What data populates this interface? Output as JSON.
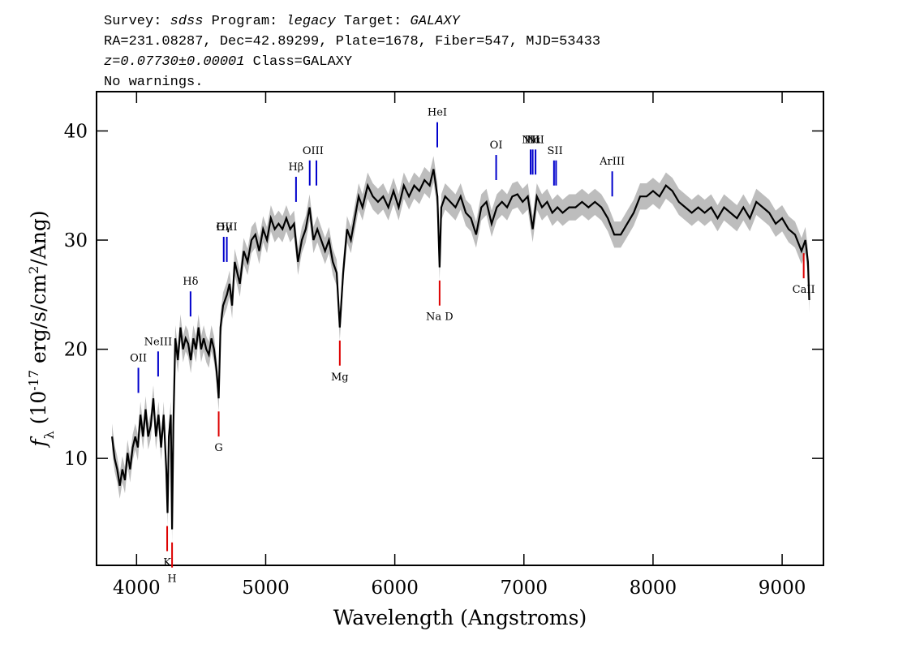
{
  "header": {
    "lines": [
      [
        {
          "text": "Survey: "
        },
        {
          "text": "sdss",
          "italic": true
        },
        {
          "text": " Program: "
        },
        {
          "text": "legacy",
          "italic": true
        },
        {
          "text": " Target: "
        },
        {
          "text": "GALAXY",
          "italic": true
        }
      ],
      [
        {
          "text": "RA=231.08287, Dec=42.89299, Plate=1678, Fiber=547, MJD=53433"
        }
      ],
      [
        {
          "text": "z=0.07730±0.00001",
          "italic": true
        },
        {
          "text": " Class=GALAXY"
        }
      ],
      [
        {
          "text": "No warnings."
        }
      ]
    ]
  },
  "chart_data": {
    "type": "line",
    "x_label": "Wavelength (Angstroms)",
    "y_label": [
      {
        "text": "f",
        "italic": true
      },
      {
        "text": "λ",
        "shift": "sub"
      },
      {
        "text": " (10"
      },
      {
        "text": "-17",
        "shift": "sup"
      },
      {
        "text": " erg/s/cm"
      },
      {
        "text": "2",
        "shift": "sup"
      },
      {
        "text": "/Ang)"
      }
    ],
    "xlim": [
      3690,
      9320
    ],
    "ylim": [
      0.2,
      43.6
    ],
    "xticks": [
      4000,
      5000,
      6000,
      7000,
      8000,
      9000
    ],
    "yticks": [
      10,
      20,
      30,
      40
    ],
    "series": [
      {
        "color": "#000000",
        "band_color": "#bdbdbd",
        "error": 1.2,
        "x": [
          3810,
          3830,
          3850,
          3870,
          3890,
          3910,
          3930,
          3950,
          3970,
          3990,
          4010,
          4030,
          4050,
          4070,
          4090,
          4110,
          4130,
          4150,
          4170,
          4190,
          4210,
          4230,
          4240,
          4250,
          4265,
          4275,
          4285,
          4300,
          4320,
          4340,
          4360,
          4380,
          4400,
          4420,
          4440,
          4460,
          4480,
          4500,
          4520,
          4540,
          4560,
          4580,
          4600,
          4620,
          4636,
          4650,
          4670,
          4700,
          4720,
          4740,
          4760,
          4780,
          4800,
          4830,
          4860,
          4890,
          4920,
          4950,
          4980,
          5010,
          5040,
          5070,
          5100,
          5130,
          5160,
          5190,
          5220,
          5250,
          5280,
          5310,
          5340,
          5370,
          5400,
          5430,
          5460,
          5490,
          5520,
          5550,
          5574,
          5600,
          5630,
          5660,
          5690,
          5720,
          5750,
          5790,
          5830,
          5870,
          5910,
          5950,
          5990,
          6030,
          6070,
          6110,
          6150,
          6190,
          6230,
          6270,
          6300,
          6330,
          6347,
          6360,
          6390,
          6430,
          6470,
          6510,
          6550,
          6590,
          6630,
          6670,
          6710,
          6750,
          6790,
          6830,
          6870,
          6910,
          6950,
          6990,
          7030,
          7068,
          7100,
          7140,
          7180,
          7220,
          7260,
          7300,
          7350,
          7400,
          7450,
          7500,
          7550,
          7600,
          7650,
          7700,
          7750,
          7800,
          7850,
          7900,
          7950,
          8000,
          8050,
          8100,
          8150,
          8200,
          8250,
          8300,
          8350,
          8400,
          8450,
          8500,
          8550,
          8600,
          8650,
          8700,
          8750,
          8800,
          8850,
          8900,
          8950,
          9000,
          9050,
          9100,
          9150,
          9180,
          9200,
          9210
        ],
        "values": [
          12,
          10,
          9,
          7.5,
          9,
          8,
          10.5,
          9,
          11,
          12,
          11,
          14,
          12,
          14.5,
          12,
          13,
          15.5,
          12,
          14,
          11,
          14,
          9,
          5,
          12,
          14,
          3.5,
          13,
          21,
          19,
          22,
          20,
          21,
          20.5,
          19,
          21,
          20,
          22,
          20,
          21,
          20,
          19.5,
          21,
          20,
          18,
          15.5,
          22,
          24,
          25,
          26,
          24,
          28,
          27,
          26,
          29,
          28,
          30,
          30.5,
          29,
          31,
          30,
          32,
          31,
          31.5,
          31,
          32,
          31,
          31.5,
          28,
          30,
          31,
          33,
          30,
          31,
          30,
          29,
          30,
          28,
          27,
          22,
          27,
          31,
          30,
          32,
          34,
          33,
          35,
          34,
          33.5,
          34,
          33,
          34.5,
          33,
          35,
          34,
          35,
          34.5,
          35.5,
          35,
          36.5,
          34,
          27.5,
          33,
          34,
          33.5,
          33,
          34,
          32.5,
          32,
          30.5,
          33,
          33.5,
          31.5,
          33,
          33.5,
          33,
          34,
          34.2,
          33.5,
          34,
          31,
          34,
          33,
          33.5,
          32.5,
          33,
          32.5,
          33,
          33,
          33.5,
          33,
          33.5,
          33,
          32,
          30.5,
          30.5,
          31.5,
          32.5,
          34,
          34,
          34.5,
          34,
          35,
          34.5,
          33.5,
          33,
          32.5,
          33,
          32.5,
          33,
          32,
          33,
          32.5,
          32,
          33,
          32,
          33.5,
          33,
          32.5,
          31.5,
          32,
          31,
          30.5,
          29,
          30,
          28,
          24.5
        ]
      }
    ],
    "emission_lines": [
      {
        "label": "OII",
        "x": [
          4014
        ]
      },
      {
        "label": "NeIII",
        "x": [
          4167
        ]
      },
      {
        "label": "Hδ",
        "x": [
          4418
        ]
      },
      {
        "label": "Hγ",
        "x": [
          4675
        ]
      },
      {
        "label": "OIII",
        "x": [
          4699
        ]
      },
      {
        "label": "Hβ",
        "x": [
          5235
        ]
      },
      {
        "label": "OIII",
        "x": [
          5341,
          5393
        ]
      },
      {
        "label": "HeI",
        "x": [
          6329
        ]
      },
      {
        "label": "OI",
        "x": [
          6785
        ]
      },
      {
        "label": "NII",
        "x": [
          7052
        ]
      },
      {
        "label": "Hα",
        "x": [
          7068
        ]
      },
      {
        "label": "NII",
        "x": [
          7090
        ]
      },
      {
        "label": "SII",
        "x": [
          7233,
          7249
        ]
      },
      {
        "label": "ArIII",
        "x": [
          7684
        ]
      }
    ],
    "emission_color": "#0000cc",
    "absorption_lines": [
      {
        "label": "K",
        "x": [
          4237
        ]
      },
      {
        "label": "H",
        "x": [
          4275
        ]
      },
      {
        "label": "G",
        "x": [
          4636
        ]
      },
      {
        "label": "Mg",
        "x": [
          5574
        ]
      },
      {
        "label": "Na D",
        "x": [
          6347
        ]
      },
      {
        "label": "CaII",
        "x": [
          9167
        ]
      }
    ],
    "absorption_color": "#dd0000"
  }
}
